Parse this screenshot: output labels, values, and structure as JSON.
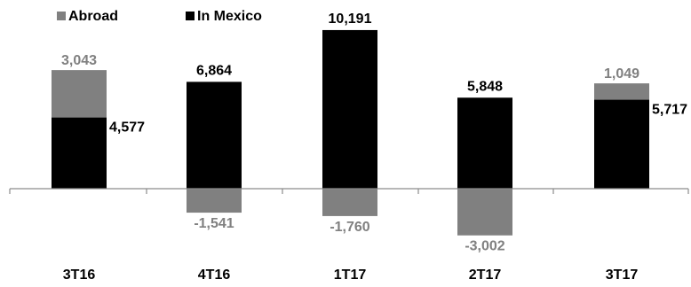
{
  "chart_data": {
    "type": "bar",
    "stacked": true,
    "categories": [
      "3T16",
      "4T16",
      "1T17",
      "2T17",
      "3T17"
    ],
    "series": [
      {
        "name": "Abroad",
        "color": "#808080",
        "values": [
          3043,
          -1541,
          -1760,
          -3002,
          1049
        ],
        "labels": [
          "3,043",
          "-1,541",
          "-1,760",
          "-3,002",
          "1,049"
        ]
      },
      {
        "name": "In Mexico",
        "color": "#000000",
        "values": [
          4577,
          6864,
          10191,
          5848,
          5717
        ],
        "labels": [
          "4,577",
          "6,864",
          "10,191",
          "5,848",
          "5,717"
        ]
      }
    ],
    "legend_position": "top-left",
    "grid": false,
    "ylim": [
      -3800,
      10600
    ]
  }
}
